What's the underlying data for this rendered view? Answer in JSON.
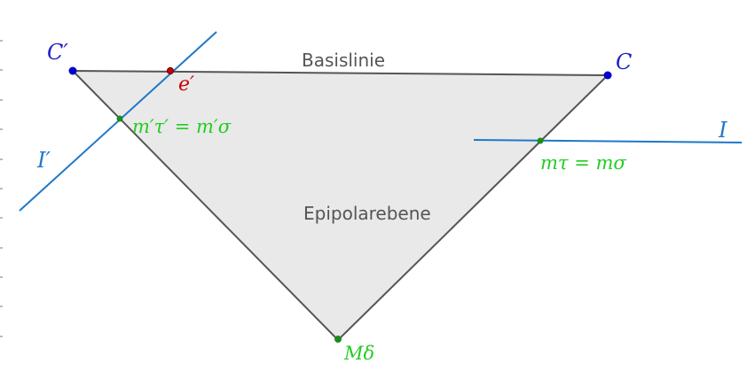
{
  "colors": {
    "plane_fill": "#e9e9e9",
    "plane_stroke": "#555555",
    "image_line": "#1e78c8",
    "camera_point": "#0000cc",
    "camera_label": "#1e1ecc",
    "epipole": "#cc0000",
    "match_point": "#1a8c1a",
    "match_label": "#22cc22",
    "text_gray": "#555555"
  },
  "labels": {
    "baseline": "Basislinie",
    "epipolar_plane": "Epipolarebene",
    "camera_left": "C′",
    "camera_right": "C",
    "epipole_left": "e′",
    "image_left": "I′",
    "image_right": "I",
    "match_left": "m′τ′ = m′σ",
    "match_right": "mτ = mσ",
    "scene_point": "Mδ"
  }
}
